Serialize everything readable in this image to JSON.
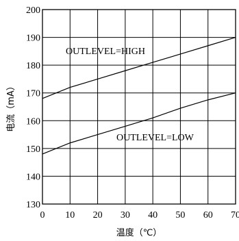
{
  "chart_data": {
    "type": "line",
    "xlabel": "温度（℃）",
    "ylabel": "电流（mA）",
    "xlim": [
      0,
      70
    ],
    "ylim": [
      130,
      200
    ],
    "xticks": [
      "0",
      "10",
      "20",
      "30",
      "40",
      "50",
      "60",
      "70"
    ],
    "yticks": [
      "130",
      "140",
      "150",
      "160",
      "170",
      "180",
      "190",
      "200"
    ],
    "grid": true,
    "series": [
      {
        "name": "OUTLEVEL=HIGH",
        "x": [
          0,
          10,
          20,
          30,
          40,
          50,
          60,
          70
        ],
        "y": [
          168,
          172,
          175,
          178,
          181,
          184,
          187,
          190
        ]
      },
      {
        "name": "OUTLEVEL=LOW",
        "x": [
          0,
          10,
          20,
          30,
          40,
          50,
          60,
          70
        ],
        "y": [
          148,
          152,
          155,
          158,
          161,
          164.5,
          167.5,
          170
        ]
      }
    ],
    "annotations": [
      "OUTLEVEL=HIGH",
      "OUTLEVEL=LOW"
    ]
  }
}
